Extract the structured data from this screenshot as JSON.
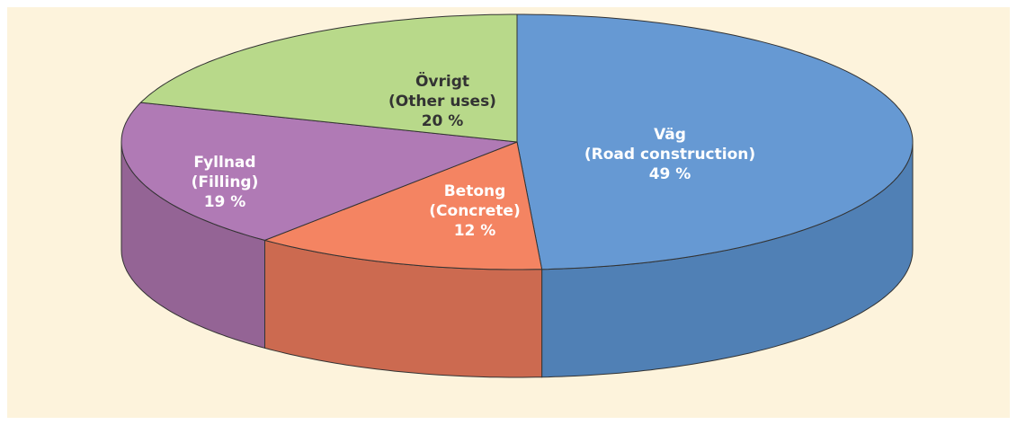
{
  "chart_data": {
    "type": "pie",
    "categories": [
      "Väg",
      "Betong",
      "Fyllnad",
      "Övrigt"
    ],
    "translations": [
      "(Road construction)",
      "(Concrete)",
      "(Filling)",
      "(Other uses)"
    ],
    "values": [
      49,
      12,
      19,
      20
    ],
    "value_labels": [
      "49 %",
      "12 %",
      "19 %",
      "20 %"
    ],
    "colors": [
      "#6699d3",
      "#f48462",
      "#b07ab5",
      "#b8d98a"
    ],
    "side_colors": [
      "#5080b5",
      "#cc6a50",
      "#946495",
      "#98b872"
    ],
    "label_colors": [
      "#ffffff",
      "#ffffff",
      "#ffffff",
      "#333333"
    ],
    "three_d": true
  }
}
